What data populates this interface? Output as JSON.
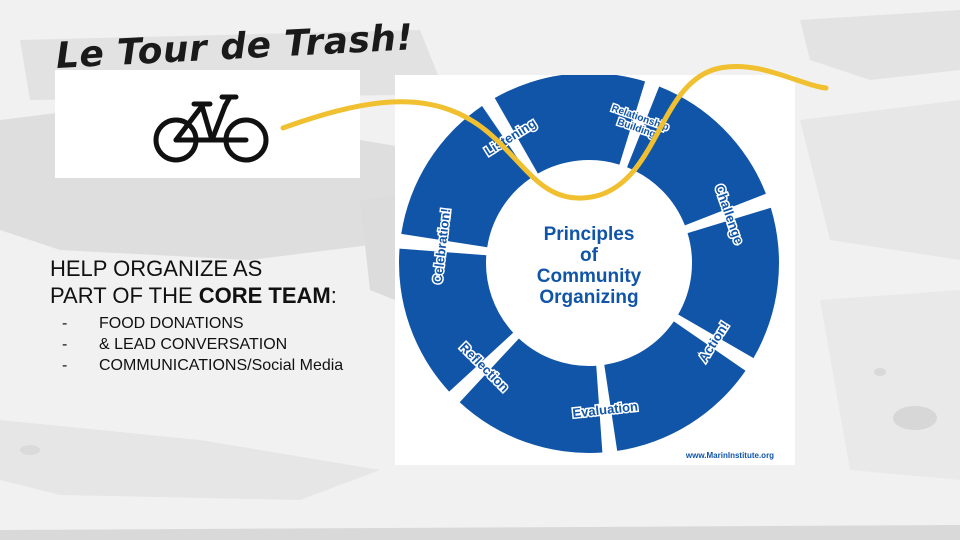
{
  "logo": {
    "title": "Le Tour de Trash!"
  },
  "heading": {
    "line1": "HELP ORGANIZE AS",
    "line2_prefix": "PART OF THE ",
    "line2_bold": "CORE TEAM",
    "line2_suffix": ":"
  },
  "tasks": [
    {
      "bullet": "-",
      "text": "FOOD DONATIONS"
    },
    {
      "bullet": "-",
      "text": "& LEAD CONVERSATION"
    },
    {
      "bullet": "-",
      "text": "COMMUNICATIONS/Social Media"
    }
  ],
  "wheel": {
    "center_lines": [
      "Principles",
      "of",
      "Community",
      "Organizing"
    ],
    "segments": [
      "Listening",
      "Relationship Building",
      "Challenge",
      "Action!",
      "Evaluation",
      "Reflection",
      "Celebration!"
    ],
    "source": "www.MarinInstitute.org"
  },
  "colors": {
    "wheel_blue": "#1155a8",
    "wave_yellow": "#f0c030",
    "text_dark": "#111111"
  }
}
